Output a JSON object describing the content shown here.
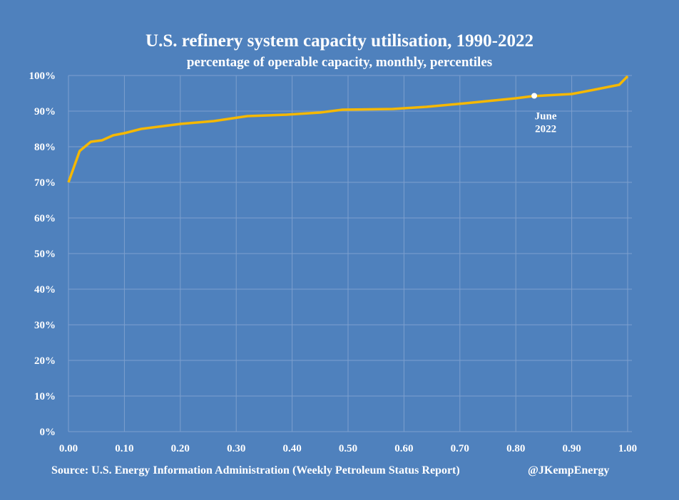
{
  "chart_data": {
    "type": "line",
    "title": "U.S. refinery system capacity utilisation, 1990-2022",
    "subtitle": "percentage of operable capacity, monthly, percentiles",
    "xlabel": "",
    "ylabel": "",
    "xlim": [
      0,
      1
    ],
    "ylim": [
      0,
      100
    ],
    "x_ticks": [
      "0.00",
      "0.10",
      "0.20",
      "0.30",
      "0.40",
      "0.50",
      "0.60",
      "0.70",
      "0.80",
      "0.90",
      "1.00"
    ],
    "y_ticks": [
      "0%",
      "10%",
      "20%",
      "30%",
      "40%",
      "50%",
      "60%",
      "70%",
      "80%",
      "90%",
      "100%"
    ],
    "grid": true,
    "series": [
      {
        "color": "#f5b800",
        "x": [
          0.0,
          0.02,
          0.04,
          0.06,
          0.08,
          0.1,
          0.13,
          0.17,
          0.2,
          0.26,
          0.32,
          0.39,
          0.41,
          0.45,
          0.49,
          0.58,
          0.64,
          0.71,
          0.8,
          0.83,
          0.9,
          0.94,
          0.985,
          1.0
        ],
        "y": [
          70.0,
          78.8,
          81.4,
          81.8,
          83.2,
          83.8,
          85.0,
          85.8,
          86.4,
          87.2,
          88.6,
          89.0,
          89.2,
          89.6,
          90.4,
          90.6,
          91.2,
          92.2,
          93.6,
          94.2,
          94.8,
          96.0,
          97.4,
          99.8
        ]
      }
    ],
    "annotations": [
      {
        "text_line1": "June",
        "text_line2": "2022",
        "x": 0.833,
        "y": 94.3
      }
    ]
  },
  "footer": {
    "source": "Source: U.S. Energy Information Administration (Weekly Petroleum Status Report)",
    "handle": "@JKempEnergy"
  },
  "colors": {
    "background": "#4f81bd",
    "line": "#f5b800",
    "grid": "#7d9fce"
  }
}
